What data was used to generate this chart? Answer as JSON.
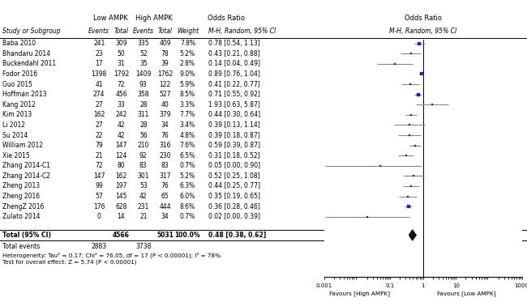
{
  "studies": [
    {
      "name": "Baba 2010",
      "low_events": 241,
      "low_total": 309,
      "high_events": 335,
      "high_total": 409,
      "weight": 7.8,
      "or": 0.78,
      "ci_low": 0.54,
      "ci_high": 1.13
    },
    {
      "name": "Bhandaru 2014",
      "low_events": 23,
      "low_total": 50,
      "high_events": 52,
      "high_total": 78,
      "weight": 5.2,
      "or": 0.43,
      "ci_low": 0.21,
      "ci_high": 0.88
    },
    {
      "name": "Buckendahl 2011",
      "low_events": 17,
      "low_total": 31,
      "high_events": 35,
      "high_total": 39,
      "weight": 2.8,
      "or": 0.14,
      "ci_low": 0.04,
      "ci_high": 0.49
    },
    {
      "name": "Fodor 2016",
      "low_events": 1398,
      "low_total": 1792,
      "high_events": 1409,
      "high_total": 1762,
      "weight": 9.0,
      "or": 0.89,
      "ci_low": 0.76,
      "ci_high": 1.04
    },
    {
      "name": "Guo 2015",
      "low_events": 41,
      "low_total": 72,
      "high_events": 93,
      "high_total": 122,
      "weight": 5.9,
      "or": 0.41,
      "ci_low": 0.22,
      "ci_high": 0.77
    },
    {
      "name": "Hoffman 2013",
      "low_events": 274,
      "low_total": 456,
      "high_events": 358,
      "high_total": 527,
      "weight": 8.5,
      "or": 0.71,
      "ci_low": 0.55,
      "ci_high": 0.92
    },
    {
      "name": "Kang 2012",
      "low_events": 27,
      "low_total": 33,
      "high_events": 28,
      "high_total": 40,
      "weight": 3.3,
      "or": 1.93,
      "ci_low": 0.63,
      "ci_high": 5.87
    },
    {
      "name": "Kim 2013",
      "low_events": 162,
      "low_total": 242,
      "high_events": 311,
      "high_total": 379,
      "weight": 7.7,
      "or": 0.44,
      "ci_low": 0.3,
      "ci_high": 0.64
    },
    {
      "name": "Li 2012",
      "low_events": 27,
      "low_total": 42,
      "high_events": 28,
      "high_total": 34,
      "weight": 3.4,
      "or": 0.39,
      "ci_low": 0.13,
      "ci_high": 1.14
    },
    {
      "name": "Su 2014",
      "low_events": 22,
      "low_total": 42,
      "high_events": 56,
      "high_total": 76,
      "weight": 4.8,
      "or": 0.39,
      "ci_low": 0.18,
      "ci_high": 0.87
    },
    {
      "name": "William 2012",
      "low_events": 79,
      "low_total": 147,
      "high_events": 210,
      "high_total": 316,
      "weight": 7.6,
      "or": 0.59,
      "ci_low": 0.39,
      "ci_high": 0.87
    },
    {
      "name": "Xie 2015",
      "low_events": 21,
      "low_total": 124,
      "high_events": 92,
      "high_total": 230,
      "weight": 6.5,
      "or": 0.31,
      "ci_low": 0.18,
      "ci_high": 0.52
    },
    {
      "name": "Zhang 2014-C1",
      "low_events": 72,
      "low_total": 80,
      "high_events": 83,
      "high_total": 83,
      "weight": 0.7,
      "or": 0.05,
      "ci_low": 0.001,
      "ci_high": 0.9
    },
    {
      "name": "Zhang 2014-C2",
      "low_events": 147,
      "low_total": 162,
      "high_events": 301,
      "high_total": 317,
      "weight": 5.2,
      "or": 0.52,
      "ci_low": 0.25,
      "ci_high": 1.08
    },
    {
      "name": "Zheng 2013",
      "low_events": 99,
      "low_total": 197,
      "high_events": 53,
      "high_total": 76,
      "weight": 6.3,
      "or": 0.44,
      "ci_low": 0.25,
      "ci_high": 0.77
    },
    {
      "name": "Zheng 2016",
      "low_events": 57,
      "low_total": 145,
      "high_events": 42,
      "high_total": 65,
      "weight": 6.0,
      "or": 0.35,
      "ci_low": 0.19,
      "ci_high": 0.65
    },
    {
      "name": "ZhengZ 2016",
      "low_events": 176,
      "low_total": 628,
      "high_events": 231,
      "high_total": 444,
      "weight": 8.6,
      "or": 0.36,
      "ci_low": 0.28,
      "ci_high": 0.46
    },
    {
      "name": "Zulato 2014",
      "low_events": 0,
      "low_total": 14,
      "high_events": 21,
      "high_total": 34,
      "weight": 0.7,
      "or": 0.02,
      "ci_low": 0.001,
      "ci_high": 0.39
    }
  ],
  "total": {
    "low_total": 4566,
    "high_total": 5031,
    "low_events": 2883,
    "high_events": 3738,
    "weight": 100.0,
    "or": 0.48,
    "ci_low": 0.38,
    "ci_high": 0.62
  },
  "heterogeneity_text": "Heterogeneity: Tau² = 0.17; Chi² = 76.05, df = 17 (P < 0.00001); I² = 78%",
  "overall_effect_text": "Test for overall effect: Z = 5.74 (P < 0.00001)",
  "favours_left": "Favours [High AMPK]",
  "favours_right": "Favours [Low AMPK]",
  "x_ticks": [
    0.001,
    0.1,
    1,
    10,
    1000
  ],
  "x_labels": [
    "0.001",
    "0.1",
    "1",
    "10",
    "1000"
  ],
  "sq_color": "#2222aa",
  "ci_color": "#888888",
  "diamond_color": "#111111",
  "fs_small": 6.0,
  "fs_tiny": 5.5,
  "fs_foot": 5.2
}
